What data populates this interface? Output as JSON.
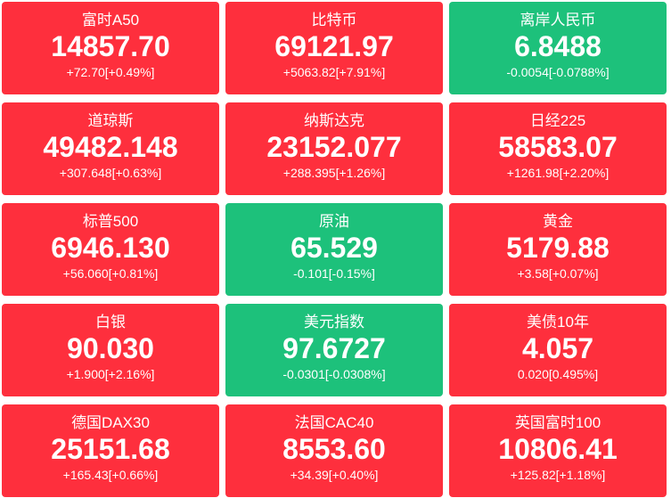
{
  "colors": {
    "up": "#fe2f3d",
    "down": "#1dc17b"
  },
  "quotes": [
    {
      "name": "富时A50",
      "price": "14857.70",
      "change": "+72.70[+0.49%]",
      "trend": "up"
    },
    {
      "name": "比特币",
      "price": "69121.97",
      "change": "+5063.82[+7.91%]",
      "trend": "up"
    },
    {
      "name": "离岸人民币",
      "price": "6.8488",
      "change": "-0.0054[-0.0788%]",
      "trend": "down"
    },
    {
      "name": "道琼斯",
      "price": "49482.148",
      "change": "+307.648[+0.63%]",
      "trend": "up"
    },
    {
      "name": "纳斯达克",
      "price": "23152.077",
      "change": "+288.395[+1.26%]",
      "trend": "up"
    },
    {
      "name": "日经225",
      "price": "58583.07",
      "change": "+1261.98[+2.20%]",
      "trend": "up"
    },
    {
      "name": "标普500",
      "price": "6946.130",
      "change": "+56.060[+0.81%]",
      "trend": "up"
    },
    {
      "name": "原油",
      "price": "65.529",
      "change": "-0.101[-0.15%]",
      "trend": "down"
    },
    {
      "name": "黄金",
      "price": "5179.88",
      "change": "+3.58[+0.07%]",
      "trend": "up"
    },
    {
      "name": "白银",
      "price": "90.030",
      "change": "+1.900[+2.16%]",
      "trend": "up"
    },
    {
      "name": "美元指数",
      "price": "97.6727",
      "change": "-0.0301[-0.0308%]",
      "trend": "down"
    },
    {
      "name": "美债10年",
      "price": "4.057",
      "change": "0.020[0.495%]",
      "trend": "up"
    },
    {
      "name": "德国DAX30",
      "price": "25151.68",
      "change": "+165.43[+0.66%]",
      "trend": "up"
    },
    {
      "name": "法国CAC40",
      "price": "8553.60",
      "change": "+34.39[+0.40%]",
      "trend": "up"
    },
    {
      "name": "英国富时100",
      "price": "10806.41",
      "change": "+125.82[+1.18%]",
      "trend": "up"
    }
  ]
}
